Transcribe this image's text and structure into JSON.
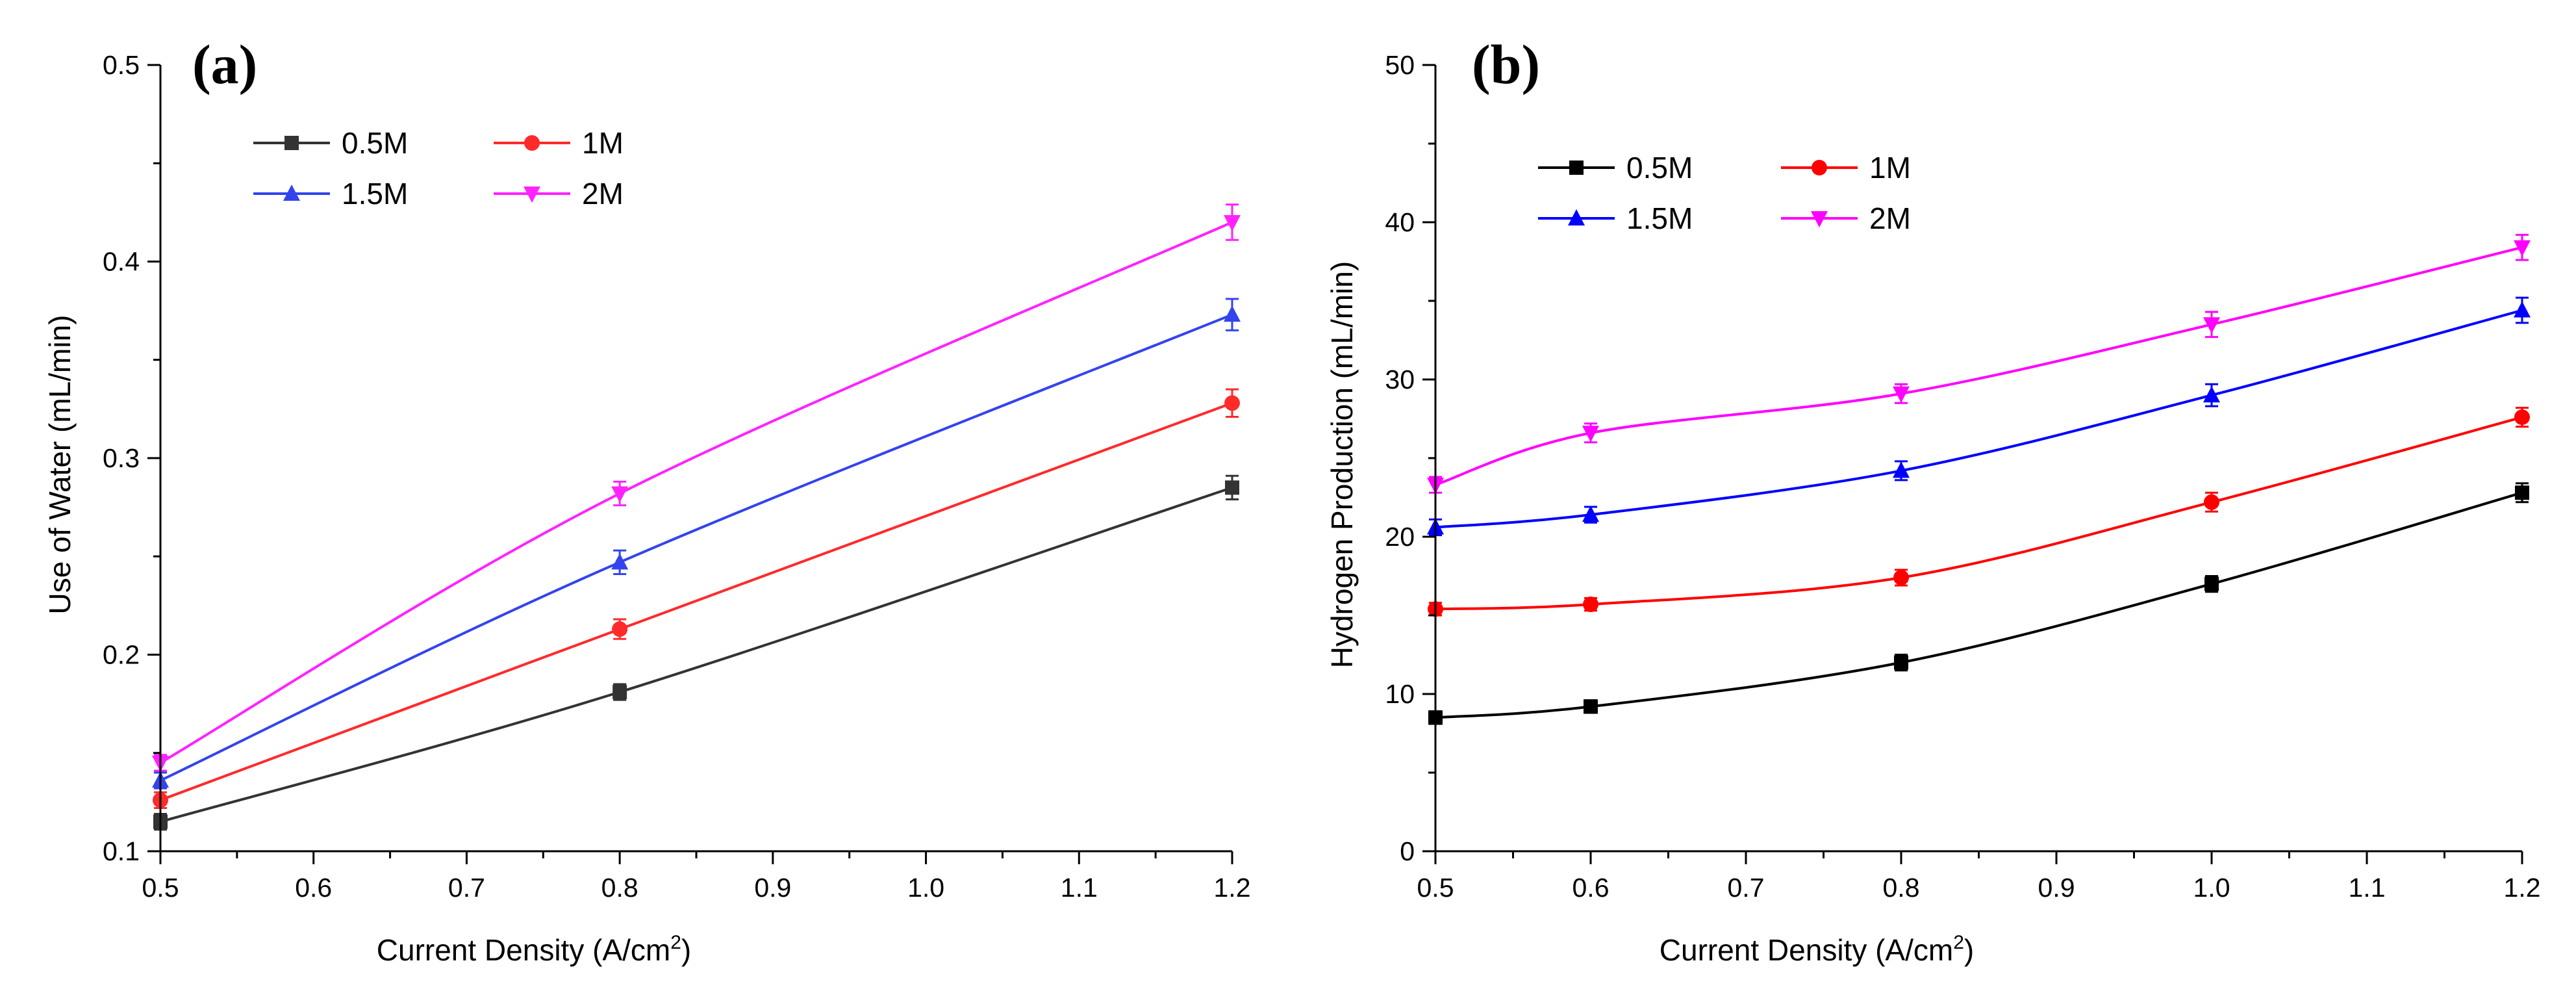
{
  "chart_data": [
    {
      "type": "line",
      "panel_label": "a",
      "xlabel": "Current Density (A/cm",
      "xlabel_sup": "2",
      "xlabel_end": ")",
      "ylabel": "Use of Water (mL/min)",
      "xlim": [
        0.5,
        1.2
      ],
      "ylim": [
        0.1,
        0.5
      ],
      "xticks": [
        0.5,
        0.6,
        0.7,
        0.8,
        0.9,
        1.0,
        1.1,
        1.2
      ],
      "yticks": [
        0.1,
        0.2,
        0.3,
        0.4,
        0.5
      ],
      "xtick_labels": [
        "0.5",
        "0.6",
        "0.7",
        "0.8",
        "0.9",
        "1.0",
        "1.1",
        "1.2"
      ],
      "ytick_labels": [
        "0.1",
        "0.2",
        "0.3",
        "0.4",
        "0.5"
      ],
      "legend_position": "top-left",
      "series": [
        {
          "name": "0.5M",
          "color": "#333333",
          "marker": "square",
          "x": [
            0.5,
            0.8,
            1.2
          ],
          "y": [
            0.115,
            0.181,
            0.285
          ],
          "err": [
            0.004,
            0.004,
            0.006
          ]
        },
        {
          "name": "1M",
          "color": "#ff2a2a",
          "marker": "circle",
          "x": [
            0.5,
            0.8,
            1.2
          ],
          "y": [
            0.126,
            0.213,
            0.328
          ],
          "err": [
            0.004,
            0.005,
            0.007
          ]
        },
        {
          "name": "1.5M",
          "color": "#3344ee",
          "marker": "triangle-up",
          "x": [
            0.5,
            0.8,
            1.2
          ],
          "y": [
            0.136,
            0.247,
            0.373
          ],
          "err": [
            0.004,
            0.006,
            0.008
          ]
        },
        {
          "name": "2M",
          "color": "#ff22ff",
          "marker": "triangle-down",
          "x": [
            0.5,
            0.8,
            1.2
          ],
          "y": [
            0.145,
            0.282,
            0.42
          ],
          "err": [
            0.004,
            0.006,
            0.009
          ]
        }
      ]
    },
    {
      "type": "line",
      "panel_label": "b",
      "xlabel": "Current Density (A/cm",
      "xlabel_sup": "2",
      "xlabel_end": ")",
      "ylabel": "Hydrogen Production (mL/min)",
      "xlim": [
        0.5,
        1.2
      ],
      "ylim": [
        0,
        50
      ],
      "xticks": [
        0.5,
        0.6,
        0.7,
        0.8,
        0.9,
        1.0,
        1.1,
        1.2
      ],
      "yticks": [
        0,
        10,
        20,
        30,
        40,
        50
      ],
      "xtick_labels": [
        "0.5",
        "0.6",
        "0.7",
        "0.8",
        "0.9",
        "1.0",
        "1.1",
        "1.2"
      ],
      "ytick_labels": [
        "0",
        "10",
        "20",
        "30",
        "40",
        "50"
      ],
      "legend_position": "top-left",
      "series": [
        {
          "name": "0.5M",
          "color": "#000000",
          "marker": "square",
          "x": [
            0.5,
            0.6,
            0.8,
            1.0,
            1.2
          ],
          "y": [
            8.5,
            9.2,
            12.0,
            17.0,
            22.8
          ],
          "err": [
            0.4,
            0.4,
            0.5,
            0.5,
            0.6
          ]
        },
        {
          "name": "1M",
          "color": "#ff0000",
          "marker": "circle",
          "x": [
            0.5,
            0.6,
            0.8,
            1.0,
            1.2
          ],
          "y": [
            15.4,
            15.7,
            17.4,
            22.2,
            27.6
          ],
          "err": [
            0.4,
            0.4,
            0.5,
            0.6,
            0.6
          ]
        },
        {
          "name": "1.5M",
          "color": "#0000ff",
          "marker": "triangle-up",
          "x": [
            0.5,
            0.6,
            0.8,
            1.0,
            1.2
          ],
          "y": [
            20.6,
            21.4,
            24.2,
            29.0,
            34.4
          ],
          "err": [
            0.5,
            0.5,
            0.6,
            0.7,
            0.8
          ]
        },
        {
          "name": "2M",
          "color": "#ff00ff",
          "marker": "triangle-down",
          "x": [
            0.5,
            0.6,
            0.8,
            1.0,
            1.2
          ],
          "y": [
            23.3,
            26.6,
            29.1,
            33.5,
            38.4
          ],
          "err": [
            0.5,
            0.6,
            0.6,
            0.8,
            0.8
          ]
        }
      ]
    }
  ]
}
